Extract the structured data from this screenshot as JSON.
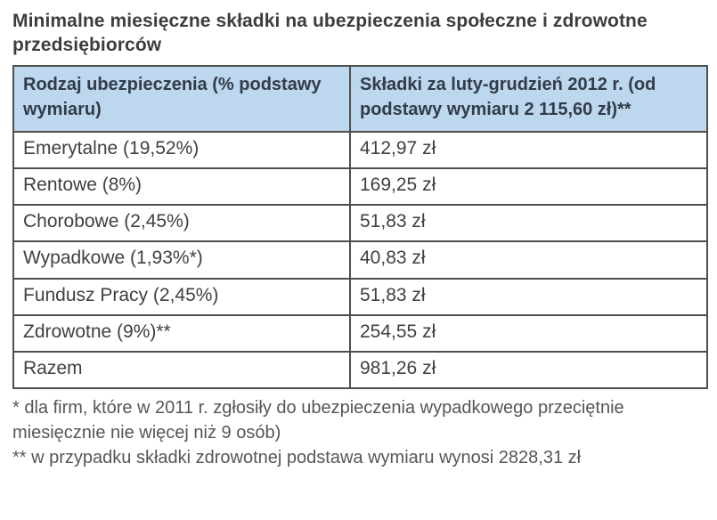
{
  "title": "Minimalne miesięczne składki na ubezpieczenia społeczne i zdrowotne przedsiębiorców",
  "table": {
    "headers": [
      "Rodzaj ubezpieczenia (% podstawy wymiaru)",
      "Składki za luty-grudzień 2012 r. (od podstawy wymiaru 2 115,60 zł)**"
    ],
    "rows": [
      [
        "Emerytalne (19,52%)",
        "412,97 zł"
      ],
      [
        "Rentowe  (8%)",
        "169,25 zł"
      ],
      [
        "Chorobowe (2,45%)",
        "51,83 zł"
      ],
      [
        "Wypadkowe (1,93%*)",
        "40,83 zł"
      ],
      [
        "Fundusz Pracy (2,45%)",
        "51,83 zł"
      ],
      [
        "Zdrowotne (9%)**",
        "254,55 zł"
      ],
      [
        "Razem",
        "981,26 zł"
      ]
    ]
  },
  "footnotes": [
    "* dla firm, które w 2011 r. zgłosiły do ubezpieczenia wypadkowego przeciętnie miesięcznie nie więcej niż 9 osób)",
    "** w przypadku składki zdrowotnej podstawa wymiaru wynosi 2828,31 zł"
  ],
  "colors": {
    "header_bg": "#bdd7ee",
    "border": "#4f4f4f",
    "text": "#404040"
  }
}
